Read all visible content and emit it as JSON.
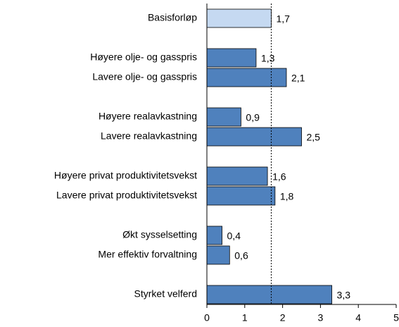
{
  "chart_data": {
    "type": "bar",
    "orientation": "horizontal",
    "categories": [
      "Basisforløp",
      null,
      "Høyere olje- og gasspris",
      "Lavere olje- og gasspris",
      null,
      "Høyere realavkastning",
      "Lavere realavkastning",
      null,
      "Høyere privat produktivitetsvekst",
      "Lavere privat produktivitetsvekst",
      null,
      "Økt sysselsetting",
      "Mer effektiv forvaltning",
      null,
      "Styrket velferd"
    ],
    "values": [
      1.7,
      null,
      1.3,
      2.1,
      null,
      0.9,
      2.5,
      null,
      1.6,
      1.8,
      null,
      0.4,
      0.6,
      null,
      3.3
    ],
    "value_labels": [
      "1,7",
      null,
      "1,3",
      "2,1",
      null,
      "0,9",
      "2,5",
      null,
      "1,6",
      "1,8",
      null,
      "0,4",
      "0,6",
      null,
      "3,3"
    ],
    "colors": [
      "#c5d9f1",
      null,
      "#4f81bd",
      "#4f81bd",
      null,
      "#4f81bd",
      "#4f81bd",
      null,
      "#4f81bd",
      "#4f81bd",
      null,
      "#4f81bd",
      "#4f81bd",
      null,
      "#4f81bd"
    ],
    "xlim": [
      0,
      5
    ],
    "xticks": [
      0,
      1,
      2,
      3,
      4,
      5
    ],
    "reference_line": 1.7
  }
}
